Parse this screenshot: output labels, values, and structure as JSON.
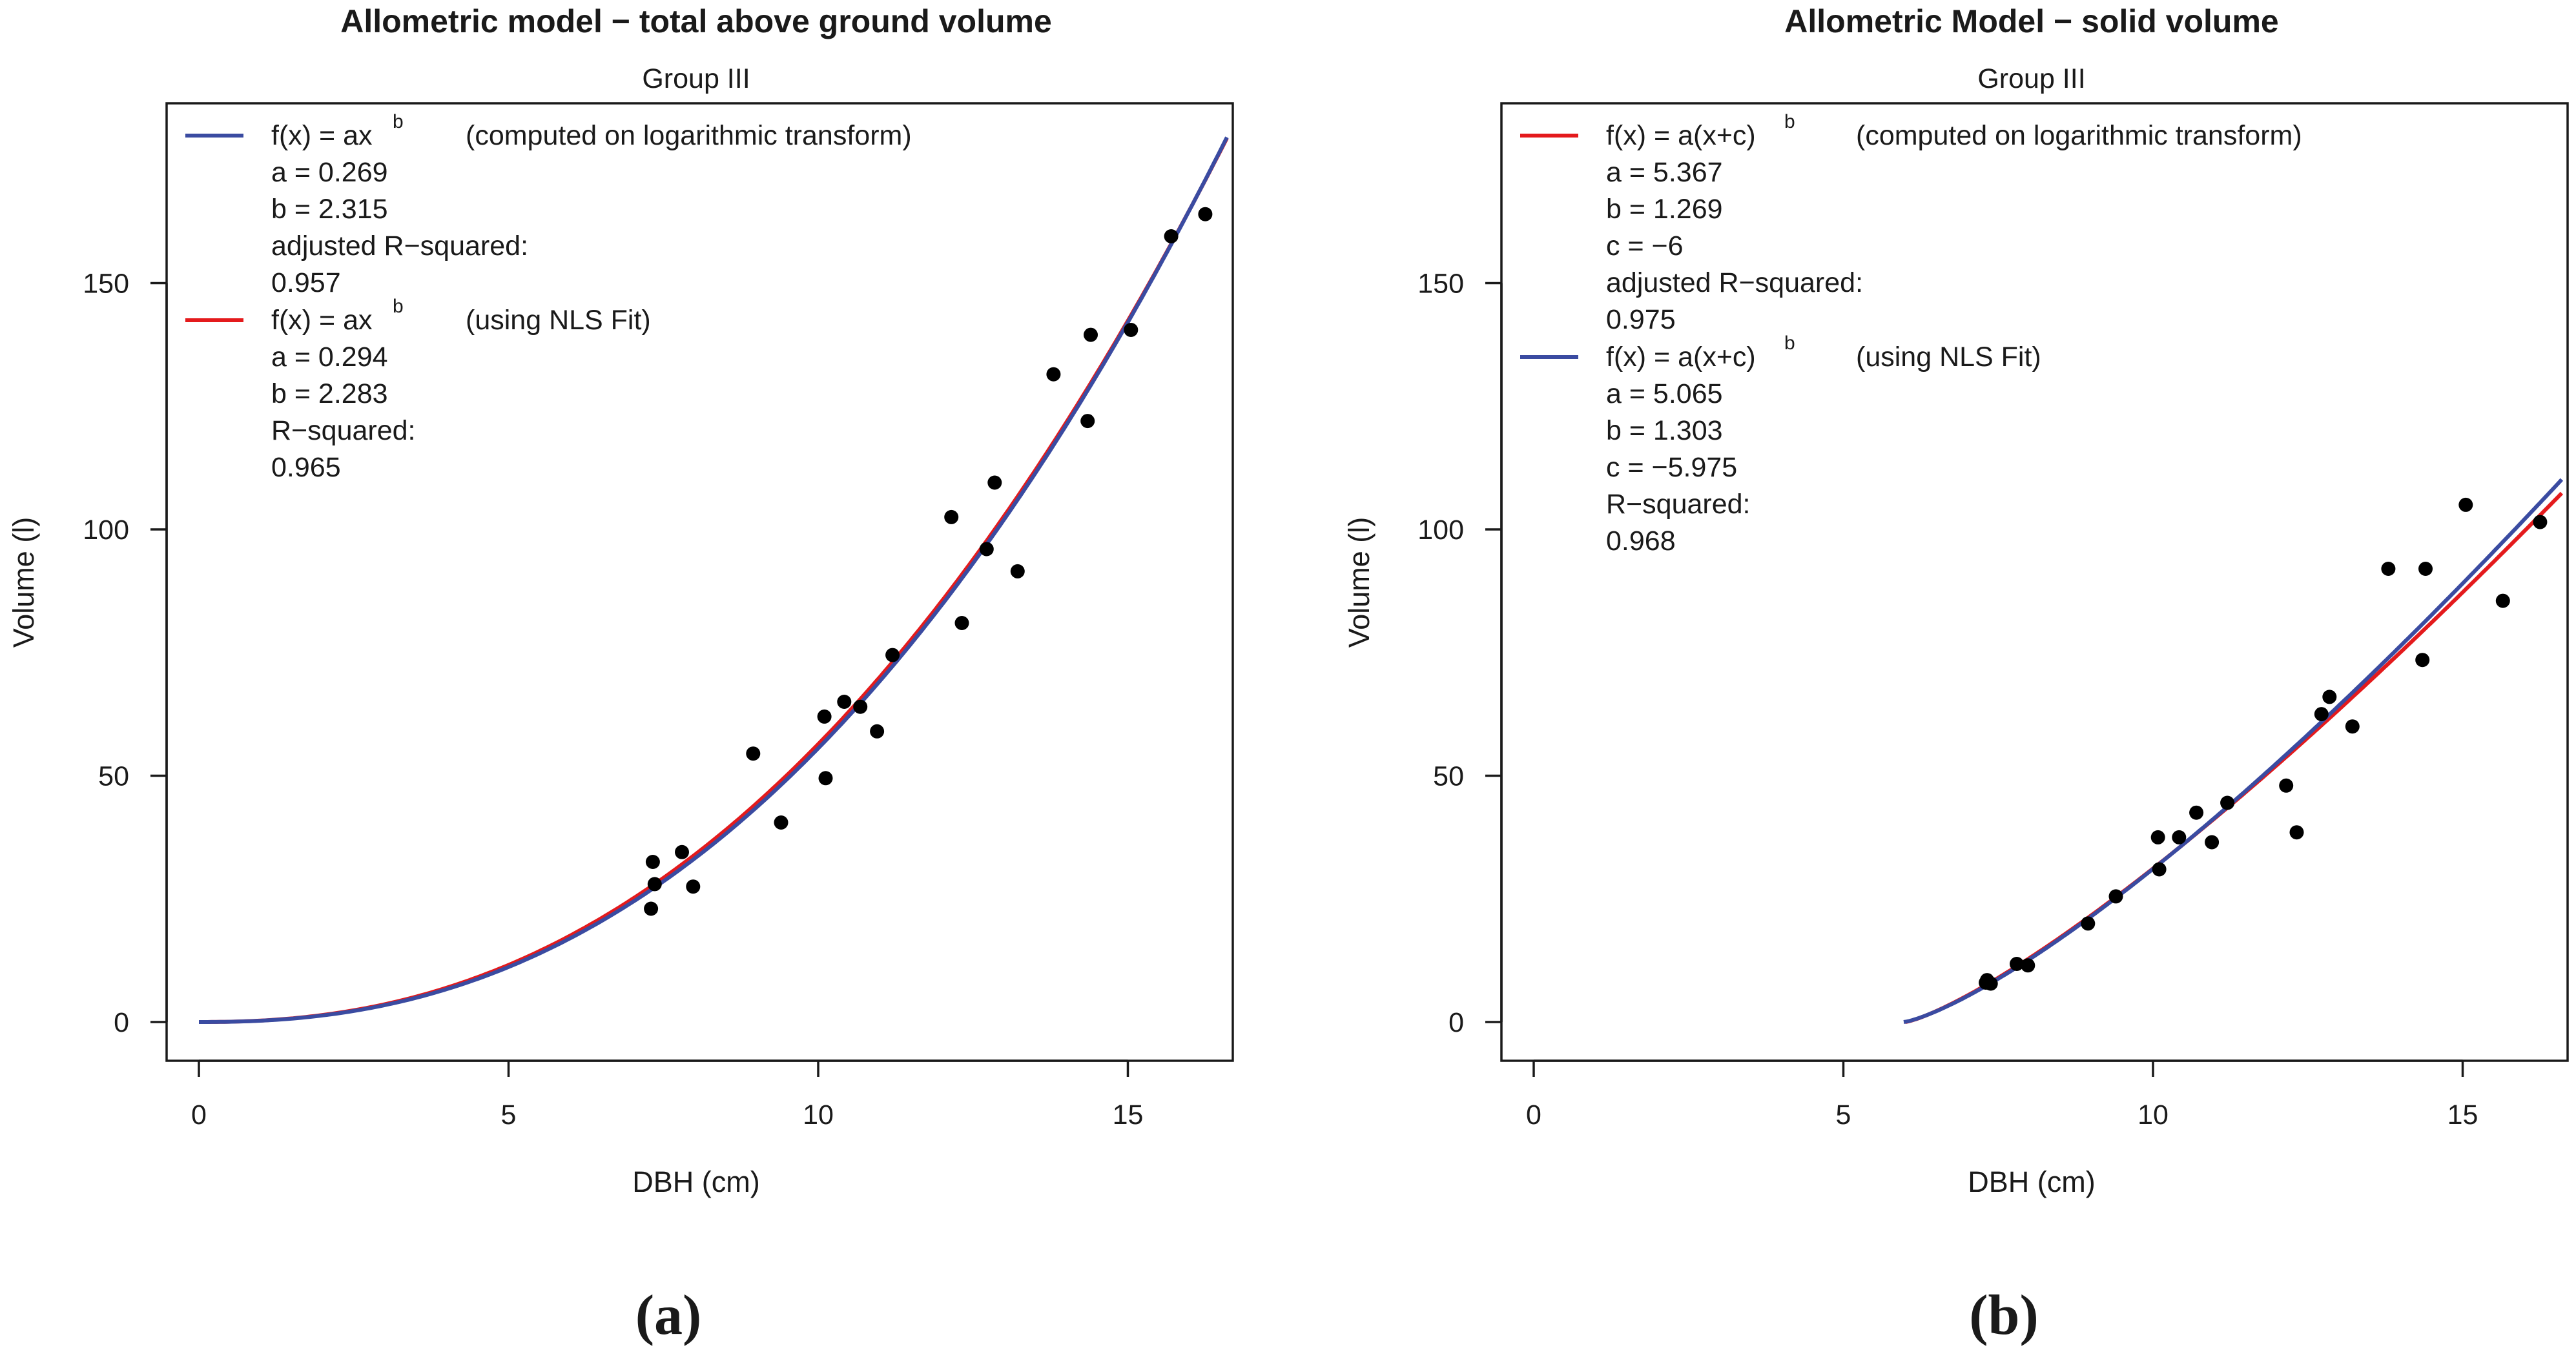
{
  "colors": {
    "red": "#e41a1c",
    "blue": "#3a4ba1",
    "points": "#000000"
  },
  "chart_data": [
    {
      "type": "scatter",
      "panel_label": "(a)",
      "title": "Allometric model − total above ground volume",
      "subtitle": "Group III",
      "xlabel": "DBH (cm)",
      "ylabel": "Volume (l)",
      "xlim": [
        0,
        16.6
      ],
      "ylim": [
        0,
        180
      ],
      "xticks": [
        0,
        5,
        10,
        15
      ],
      "yticks": [
        0,
        50,
        100,
        150
      ],
      "points": [
        [
          7.3,
          23
        ],
        [
          7.33,
          32.5
        ],
        [
          7.36,
          28
        ],
        [
          7.8,
          34.5
        ],
        [
          7.98,
          27.5
        ],
        [
          8.95,
          54.5
        ],
        [
          9.4,
          40.5
        ],
        [
          10.1,
          62
        ],
        [
          10.12,
          49.5
        ],
        [
          10.42,
          65
        ],
        [
          10.68,
          64
        ],
        [
          10.95,
          59
        ],
        [
          11.2,
          74.5
        ],
        [
          12.15,
          102.5
        ],
        [
          12.32,
          81
        ],
        [
          12.72,
          96
        ],
        [
          12.85,
          109.5
        ],
        [
          13.22,
          91.5
        ],
        [
          13.8,
          131.5
        ],
        [
          14.35,
          122
        ],
        [
          14.4,
          139.5
        ],
        [
          15.05,
          140.5
        ],
        [
          15.7,
          159.5
        ],
        [
          16.25,
          164
        ]
      ],
      "series": [
        {
          "name": "log-transform",
          "color": "#3a4ba1",
          "model": "power",
          "params": {
            "a": 0.269,
            "b": 2.315
          },
          "x_range": [
            0,
            16.6
          ],
          "legend": {
            "formula": "f(x) = ax",
            "exponent": "b",
            "method": "(computed on logarithmic transform)",
            "lines": [
              "a = 0.269",
              "b = 2.315",
              "adjusted R−squared:",
              "0.957"
            ]
          }
        },
        {
          "name": "nls",
          "color": "#e41a1c",
          "model": "power",
          "params": {
            "a": 0.294,
            "b": 2.283
          },
          "x_range": [
            0,
            16.6
          ],
          "legend": {
            "formula": "f(x) = ax",
            "exponent": "b",
            "method": "(using NLS Fit)",
            "lines": [
              "a = 0.294",
              "b = 2.283",
              "R−squared:",
              "0.965"
            ]
          }
        }
      ]
    },
    {
      "type": "scatter",
      "panel_label": "(b)",
      "title": "Allometric Model − solid volume",
      "subtitle": "Group III",
      "xlabel": "DBH (cm)",
      "ylabel": "Volume (l)",
      "xlim": [
        0,
        16.6
      ],
      "ylim": [
        0,
        180
      ],
      "xticks": [
        0,
        5,
        10,
        15
      ],
      "yticks": [
        0,
        50,
        100,
        150
      ],
      "points": [
        [
          7.3,
          8
        ],
        [
          7.32,
          8.5
        ],
        [
          7.38,
          7.8
        ],
        [
          7.8,
          11.8
        ],
        [
          7.98,
          11.5
        ],
        [
          8.95,
          20
        ],
        [
          9.4,
          25.5
        ],
        [
          10.08,
          37.5
        ],
        [
          10.1,
          31
        ],
        [
          10.42,
          37.5
        ],
        [
          10.7,
          42.5
        ],
        [
          10.95,
          36.5
        ],
        [
          11.2,
          44.5
        ],
        [
          12.15,
          48
        ],
        [
          12.32,
          38.5
        ],
        [
          12.72,
          62.5
        ],
        [
          12.85,
          66
        ],
        [
          13.22,
          60
        ],
        [
          13.8,
          92
        ],
        [
          14.35,
          73.5
        ],
        [
          14.4,
          92
        ],
        [
          15.05,
          105
        ],
        [
          15.65,
          85.5
        ],
        [
          16.25,
          101.5
        ]
      ],
      "series": [
        {
          "name": "log-transform",
          "color": "#e41a1c",
          "model": "shifted-power",
          "params": {
            "a": 5.367,
            "b": 1.269,
            "c": -6
          },
          "x_range": [
            6.0,
            16.6
          ],
          "legend": {
            "formula": "f(x) = a(x+c)",
            "exponent": "b",
            "method": "(computed on logarithmic transform)",
            "lines": [
              "a = 5.367",
              "b = 1.269",
              "c = −6",
              "adjusted R−squared:",
              "0.975"
            ]
          }
        },
        {
          "name": "nls",
          "color": "#3a4ba1",
          "model": "shifted-power",
          "params": {
            "a": 5.065,
            "b": 1.303,
            "c": -5.975
          },
          "x_range": [
            5.975,
            16.6
          ],
          "legend": {
            "formula": "f(x) = a(x+c)",
            "exponent": "b",
            "method": "(using NLS Fit)",
            "lines": [
              "a = 5.065",
              "b = 1.303",
              "c = −5.975",
              "R−squared:",
              "0.968"
            ]
          }
        }
      ]
    }
  ]
}
